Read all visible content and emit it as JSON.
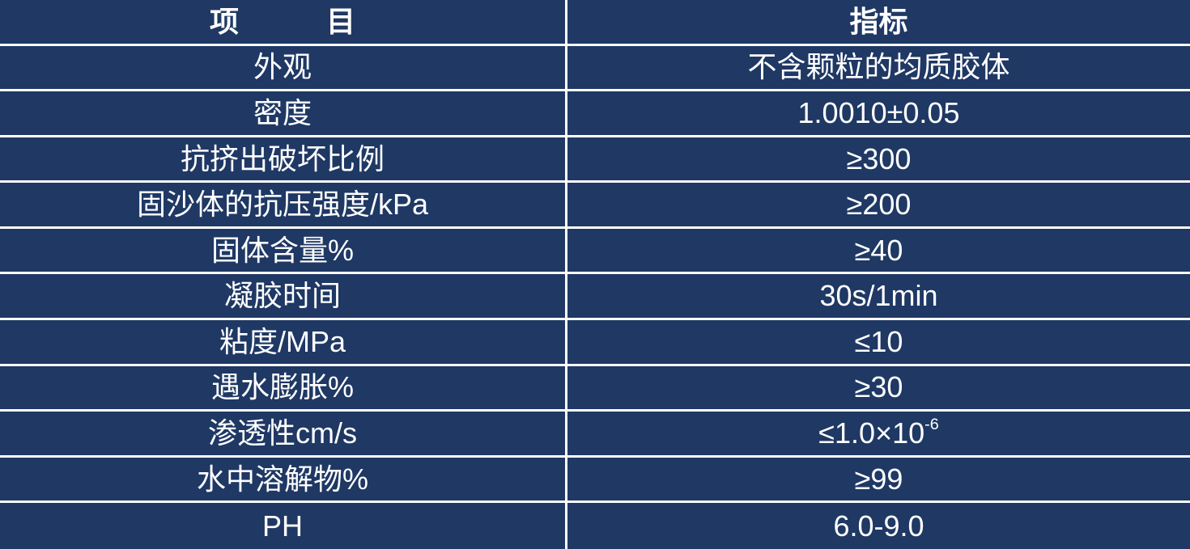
{
  "table": {
    "title": "product-spec-table",
    "colors": {
      "background": "#1f3864",
      "grid_line": "#ffffff",
      "text": "#ffffff"
    },
    "header": {
      "item_label": "项　　　目",
      "value_label": "指标"
    },
    "rows": [
      {
        "item": "外观",
        "value": "不含颗粒的均质胶体"
      },
      {
        "item": "密度",
        "value": "1.0010±0.05"
      },
      {
        "item": "抗挤出破坏比例",
        "value": "≥300"
      },
      {
        "item": "固沙体的抗压强度/kPa",
        "value": "≥200"
      },
      {
        "item": "固体含量%",
        "value": "≥40"
      },
      {
        "item": "凝胶时间",
        "value": "30s/1min"
      },
      {
        "item": "粘度/MPa",
        "value": "≤10"
      },
      {
        "item": "遇水膨胀%",
        "value": "≥30"
      },
      {
        "item": "渗透性cm/s",
        "value": "≤1.0×10",
        "value_sup": "-6"
      },
      {
        "item": "水中溶解物%",
        "value": "≥99"
      },
      {
        "item": "PH",
        "value": "6.0-9.0"
      }
    ]
  }
}
